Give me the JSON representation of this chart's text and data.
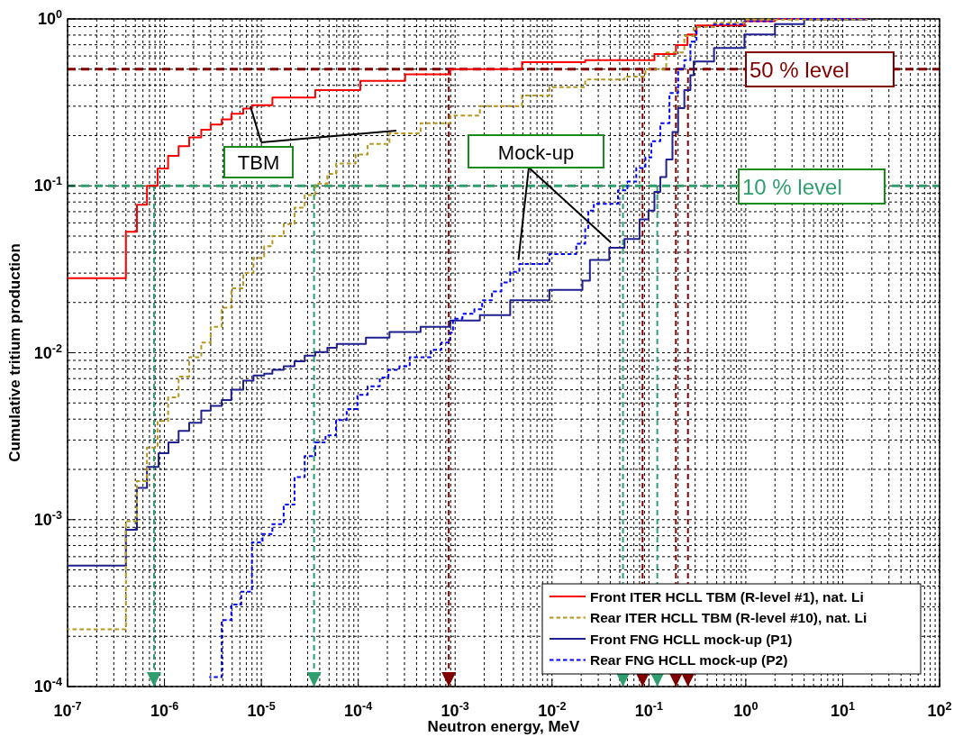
{
  "chart_data": {
    "type": "step",
    "xlabel": "Neutron energy, MeV",
    "ylabel": "Cumulative tritium production",
    "log": "xy",
    "grid": true,
    "legend": "bottom right",
    "xlim": [
      1e-07,
      100
    ],
    "ylim": [
      0.0001,
      1
    ],
    "xticks": [
      {
        "value": 1e-07,
        "label": "10$^{-7}$"
      },
      {
        "value": 1e-06,
        "label": "10$^{-6}$"
      },
      {
        "value": 1e-05,
        "label": "10$^{-5}$"
      },
      {
        "value": 0.0001,
        "label": "10$^{-4}$"
      },
      {
        "value": 0.001,
        "label": "10$^{-3}$"
      },
      {
        "value": 0.01,
        "label": "10$^{-2}$"
      },
      {
        "value": 0.1,
        "label": "10$^{-1}$"
      },
      {
        "value": 1,
        "label": "10$^{0}$"
      },
      {
        "value": 10,
        "label": "10$^{1}$"
      },
      {
        "value": 100,
        "label": "10$^{2}$"
      }
    ],
    "yticks": [
      {
        "value": 0.0001,
        "label": "10$^{-4}$"
      },
      {
        "value": 0.001,
        "label": "10$^{-3}$"
      },
      {
        "value": 0.01,
        "label": "10$^{-2}$"
      },
      {
        "value": 0.1,
        "label": "10$^{-1}$"
      },
      {
        "value": 1,
        "label": "10$^{0}$"
      }
    ],
    "series": [
      {
        "name": "Front ITER HCLL TBM (R-level #1), nat. Li",
        "color": "#ff0000",
        "line_style": "solid",
        "x": [
          1e-07,
          4e-07,
          5.2e-07,
          6.6e-07,
          8.5e-07,
          1.09e-06,
          1.4e-06,
          1.8e-06,
          2.4e-06,
          3e-06,
          3.9e-06,
          4.9e-06,
          6.5e-06,
          8e-06,
          1.3e-05,
          3.6e-05,
          0.000105,
          0.000305,
          0.00089,
          0.0049,
          0.022,
          0.114,
          0.19,
          0.25,
          0.31,
          0.97,
          2.0,
          18
        ],
        "values": [
          0.028,
          0.053,
          0.077,
          0.1,
          0.127,
          0.151,
          0.173,
          0.195,
          0.217,
          0.233,
          0.25,
          0.27,
          0.29,
          0.304,
          0.338,
          0.375,
          0.425,
          0.465,
          0.5,
          0.55,
          0.567,
          0.616,
          0.697,
          0.806,
          0.913,
          0.97,
          1.0,
          1.0
        ]
      },
      {
        "name": "Rear ITER HCLL TBM (R-level #10), nat. Li",
        "color": "#b8961e",
        "line_style": "dashed",
        "x": [
          1e-07,
          4e-07,
          5.2e-07,
          6.6e-07,
          8.5e-07,
          1.09e-06,
          1.4e-06,
          1.8e-06,
          2.4e-06,
          3e-06,
          3.9e-06,
          4.9e-06,
          6.5e-06,
          8.3e-06,
          1.07e-05,
          1.3e-05,
          1.7e-05,
          2.2e-05,
          2.8e-05,
          3.6e-05,
          4.8e-05,
          5.9e-05,
          9.4e-05,
          0.000125,
          0.00021,
          0.00044,
          0.00089,
          0.0018,
          0.0049,
          0.0094,
          0.022,
          0.056,
          0.092,
          0.151,
          0.232,
          0.29,
          0.47,
          0.97,
          18
        ],
        "values": [
          0.00022,
          0.00098,
          0.0017,
          0.0027,
          0.0039,
          0.0054,
          0.0072,
          0.0094,
          0.0115,
          0.0143,
          0.0186,
          0.0243,
          0.03,
          0.037,
          0.0435,
          0.05,
          0.059,
          0.074,
          0.088,
          0.103,
          0.118,
          0.136,
          0.154,
          0.178,
          0.206,
          0.237,
          0.264,
          0.3,
          0.348,
          0.39,
          0.433,
          0.451,
          0.5,
          0.63,
          0.79,
          0.894,
          0.95,
          0.99,
          0.99
        ]
      },
      {
        "name": "Front FNG HCLL mock-up (P1)",
        "color": "#1f1f8f",
        "line_style": "solid",
        "x": [
          1e-07,
          4e-07,
          5.2e-07,
          6.6e-07,
          8.7e-07,
          1.1e-06,
          1.4e-06,
          1.8e-06,
          2.4e-06,
          3e-06,
          3.9e-06,
          4.9e-06,
          6.5e-06,
          8.3e-06,
          1.07e-05,
          1.3e-05,
          1.7e-05,
          2.2e-05,
          2.8e-05,
          3.6e-05,
          4.8e-05,
          6e-05,
          0.00012,
          0.00021,
          0.00044,
          0.00089,
          0.0018,
          0.0037,
          0.0094,
          0.0206,
          0.0246,
          0.039,
          0.056,
          0.08,
          0.099,
          0.114,
          0.131,
          0.151,
          0.175,
          0.2,
          0.232,
          0.268,
          0.29,
          0.47,
          0.97,
          2.0,
          4.0,
          18
        ],
        "values": [
          0.00053,
          0.00087,
          0.00155,
          0.00207,
          0.0025,
          0.0029,
          0.0034,
          0.0038,
          0.0045,
          0.0048,
          0.0052,
          0.006,
          0.0068,
          0.0073,
          0.0075,
          0.0079,
          0.0083,
          0.0089,
          0.0096,
          0.0101,
          0.0107,
          0.0113,
          0.0123,
          0.0133,
          0.0143,
          0.0156,
          0.0168,
          0.0206,
          0.0238,
          0.027,
          0.036,
          0.0426,
          0.048,
          0.063,
          0.071,
          0.092,
          0.113,
          0.144,
          0.21,
          0.292,
          0.375,
          0.46,
          0.556,
          0.67,
          0.806,
          0.93,
          0.99,
          0.99
        ]
      },
      {
        "name": "Rear FNG HCLL mock-up (P2)",
        "color": "#0000ff",
        "line_style": "dashed",
        "x": [
          2.9e-06,
          3.9e-06,
          4.9e-06,
          6.2e-06,
          8e-06,
          1.03e-05,
          1.3e-05,
          1.7e-05,
          2.2e-05,
          2.8e-05,
          3.6e-05,
          4.6e-05,
          5.9e-05,
          7.6e-05,
          9.8e-05,
          0.000125,
          0.000167,
          0.000205,
          0.000266,
          0.00034,
          0.00056,
          0.00072,
          0.00089,
          0.00095,
          0.00119,
          0.00158,
          0.0019,
          0.0024,
          0.003,
          0.0037,
          0.0046,
          0.0094,
          0.0178,
          0.022,
          0.0237,
          0.027,
          0.048,
          0.06,
          0.074,
          0.092,
          0.106,
          0.131,
          0.163,
          0.2,
          0.232,
          0.268,
          0.31,
          0.47,
          0.97,
          2.0,
          18
        ],
        "values": [
          0.000114,
          0.00025,
          0.00031,
          0.00037,
          0.00073,
          0.00082,
          0.00094,
          0.00123,
          0.0018,
          0.0024,
          0.0029,
          0.0032,
          0.00395,
          0.0046,
          0.0056,
          0.0063,
          0.0071,
          0.0079,
          0.0083,
          0.0094,
          0.0104,
          0.0115,
          0.0132,
          0.016,
          0.0171,
          0.0182,
          0.0206,
          0.0233,
          0.0264,
          0.0305,
          0.034,
          0.039,
          0.045,
          0.056,
          0.071,
          0.078,
          0.094,
          0.106,
          0.128,
          0.148,
          0.185,
          0.237,
          0.36,
          0.5,
          0.567,
          0.73,
          0.894,
          0.93,
          0.97,
          1.0,
          1.0
        ]
      }
    ],
    "ref_lines": [
      {
        "axis": "y",
        "value": 0.5,
        "label": "50 % level",
        "color": "#800000",
        "line_style": "dashed"
      },
      {
        "axis": "y",
        "value": 0.1,
        "label": "10 % level",
        "color": "#2e9e6e",
        "line_style": "dashed"
      },
      {
        "axis": "x",
        "value": 7.8e-07,
        "label": null,
        "color": "#2e9e6e",
        "line_style": "dashed"
      },
      {
        "axis": "x",
        "value": 3.5e-05,
        "label": null,
        "color": "#2e9e6e",
        "line_style": "dashed"
      },
      {
        "axis": "x",
        "value": 0.054,
        "label": null,
        "color": "#2e9e6e",
        "line_style": "dashed"
      },
      {
        "axis": "x",
        "value": 0.122,
        "label": null,
        "color": "#2e9e6e",
        "line_style": "dashed"
      },
      {
        "axis": "x",
        "value": 0.00086,
        "label": null,
        "color": "#800000",
        "line_style": "dashed"
      },
      {
        "axis": "x",
        "value": 0.086,
        "label": null,
        "color": "#800000",
        "line_style": "dashed"
      },
      {
        "axis": "x",
        "value": 0.19,
        "label": null,
        "color": "#800000",
        "line_style": "dashed"
      },
      {
        "axis": "x",
        "value": 0.253,
        "label": null,
        "color": "#800000",
        "line_style": "dashed"
      }
    ],
    "annotations": [
      {
        "text": "TBM",
        "x": 7.7e-06,
        "y": 0.3
      },
      {
        "text": "Mock-up",
        "x": 0.0045,
        "y": 0.036
      }
    ]
  }
}
